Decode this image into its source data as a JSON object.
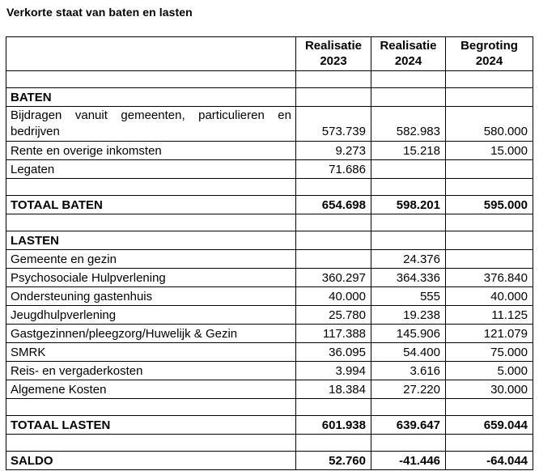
{
  "title": "Verkorte staat van baten en lasten",
  "table": {
    "columns": [
      "",
      "Realisatie\n2023",
      "Realisatie\n2024",
      "Begroting\n2024"
    ],
    "rows": [
      {
        "type": "empty",
        "label": "",
        "c1": "",
        "c2": "",
        "c3": ""
      },
      {
        "type": "section",
        "label": "BATEN",
        "c1": "",
        "c2": "",
        "c3": ""
      },
      {
        "type": "wrap",
        "label": "Bijdragen vanuit gemeenten, particulieren en\nbedrijven",
        "c1": "573.739",
        "c2": "582.983",
        "c3": "580.000"
      },
      {
        "type": "item",
        "label": "Rente en overige inkomsten",
        "c1": "9.273",
        "c2": "15.218",
        "c3": "15.000"
      },
      {
        "type": "item",
        "label": "Legaten",
        "c1": "71.686",
        "c2": "",
        "c3": ""
      },
      {
        "type": "empty",
        "label": "",
        "c1": "",
        "c2": "",
        "c3": ""
      },
      {
        "type": "total",
        "label": "TOTAAL BATEN",
        "c1": "654.698",
        "c2": "598.201",
        "c3": "595.000"
      },
      {
        "type": "empty",
        "label": "",
        "c1": "",
        "c2": "",
        "c3": ""
      },
      {
        "type": "section",
        "label": "LASTEN",
        "c1": "",
        "c2": "",
        "c3": ""
      },
      {
        "type": "item",
        "label": "Gemeente en gezin",
        "c1": "",
        "c2": "24.376",
        "c3": ""
      },
      {
        "type": "item",
        "label": "Psychosociale Hulpverlening",
        "c1": "360.297",
        "c2": "364.336",
        "c3": "376.840"
      },
      {
        "type": "item",
        "label": "Ondersteuning gastenhuis",
        "c1": "40.000",
        "c2": "555",
        "c3": "40.000"
      },
      {
        "type": "item",
        "label": "Jeugdhulpverlening",
        "c1": "25.780",
        "c2": "19.238",
        "c3": "11.125"
      },
      {
        "type": "item",
        "label": "Gastgezinnen/pleegzorg/Huwelijk & Gezin",
        "c1": "117.388",
        "c2": "145.906",
        "c3": "121.079"
      },
      {
        "type": "item",
        "label": "SMRK",
        "c1": "36.095",
        "c2": "54.400",
        "c3": "75.000"
      },
      {
        "type": "item",
        "label": "Reis- en vergaderkosten",
        "c1": "3.994",
        "c2": "3.616",
        "c3": "5.000"
      },
      {
        "type": "item",
        "label": "Algemene Kosten",
        "c1": "18.384",
        "c2": "27.220",
        "c3": "30.000"
      },
      {
        "type": "empty",
        "label": "",
        "c1": "",
        "c2": "",
        "c3": ""
      },
      {
        "type": "total",
        "label": "TOTAAL LASTEN",
        "c1": "601.938",
        "c2": "639.647",
        "c3": "659.044"
      },
      {
        "type": "empty",
        "label": "",
        "c1": "",
        "c2": "",
        "c3": ""
      },
      {
        "type": "total",
        "label": "SALDO",
        "c1": "52.760",
        "c2": "-41.446",
        "c3": "-64.044"
      }
    ]
  }
}
